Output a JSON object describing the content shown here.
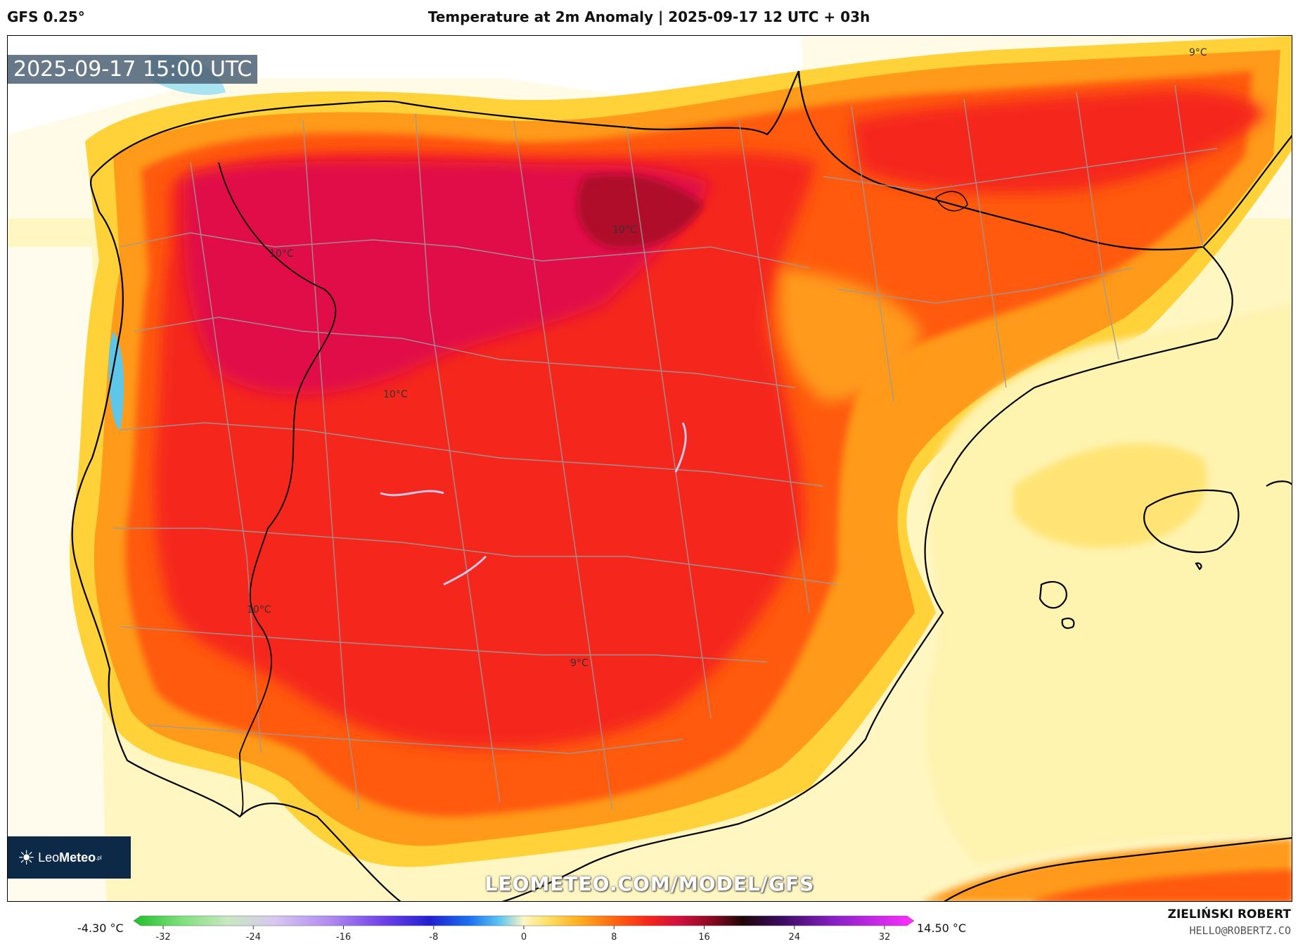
{
  "header": {
    "model": "GFS 0.25°",
    "title": "Temperature at 2m Anomaly | 2025-09-17 12 UTC + 03h"
  },
  "map": {
    "valid_time": "2025-09-17 15:00 UTC",
    "watermark": "LEOMETEO.COM/MODEL/GFS",
    "logo_text_a": "Leo",
    "logo_text_b": "Meteo",
    "logo_suffix": ".pl",
    "contour_labels": [
      "9°C",
      "10°C",
      "10°C",
      "10°C",
      "10°C",
      "9°C"
    ]
  },
  "colorbar": {
    "min_label": "-4.30 °C",
    "max_label": "14.50 °C",
    "ticks": [
      "-32",
      "-24",
      "-16",
      "-8",
      "0",
      "8",
      "16",
      "24",
      "32"
    ]
  },
  "footer": {
    "author": "ZIELIŃSKI ROBERT",
    "email": "HELLO@ROBERTZ.CO"
  },
  "colors": {
    "sea_light": "#fff3b0",
    "warm_yellow": "#ffd23a",
    "orange": "#ff9a1a",
    "orange_red": "#ff5a10",
    "red": "#f5261a",
    "crimson": "#e0104a",
    "dark_red": "#b0102a",
    "logo_bg": "#0c2a47"
  }
}
